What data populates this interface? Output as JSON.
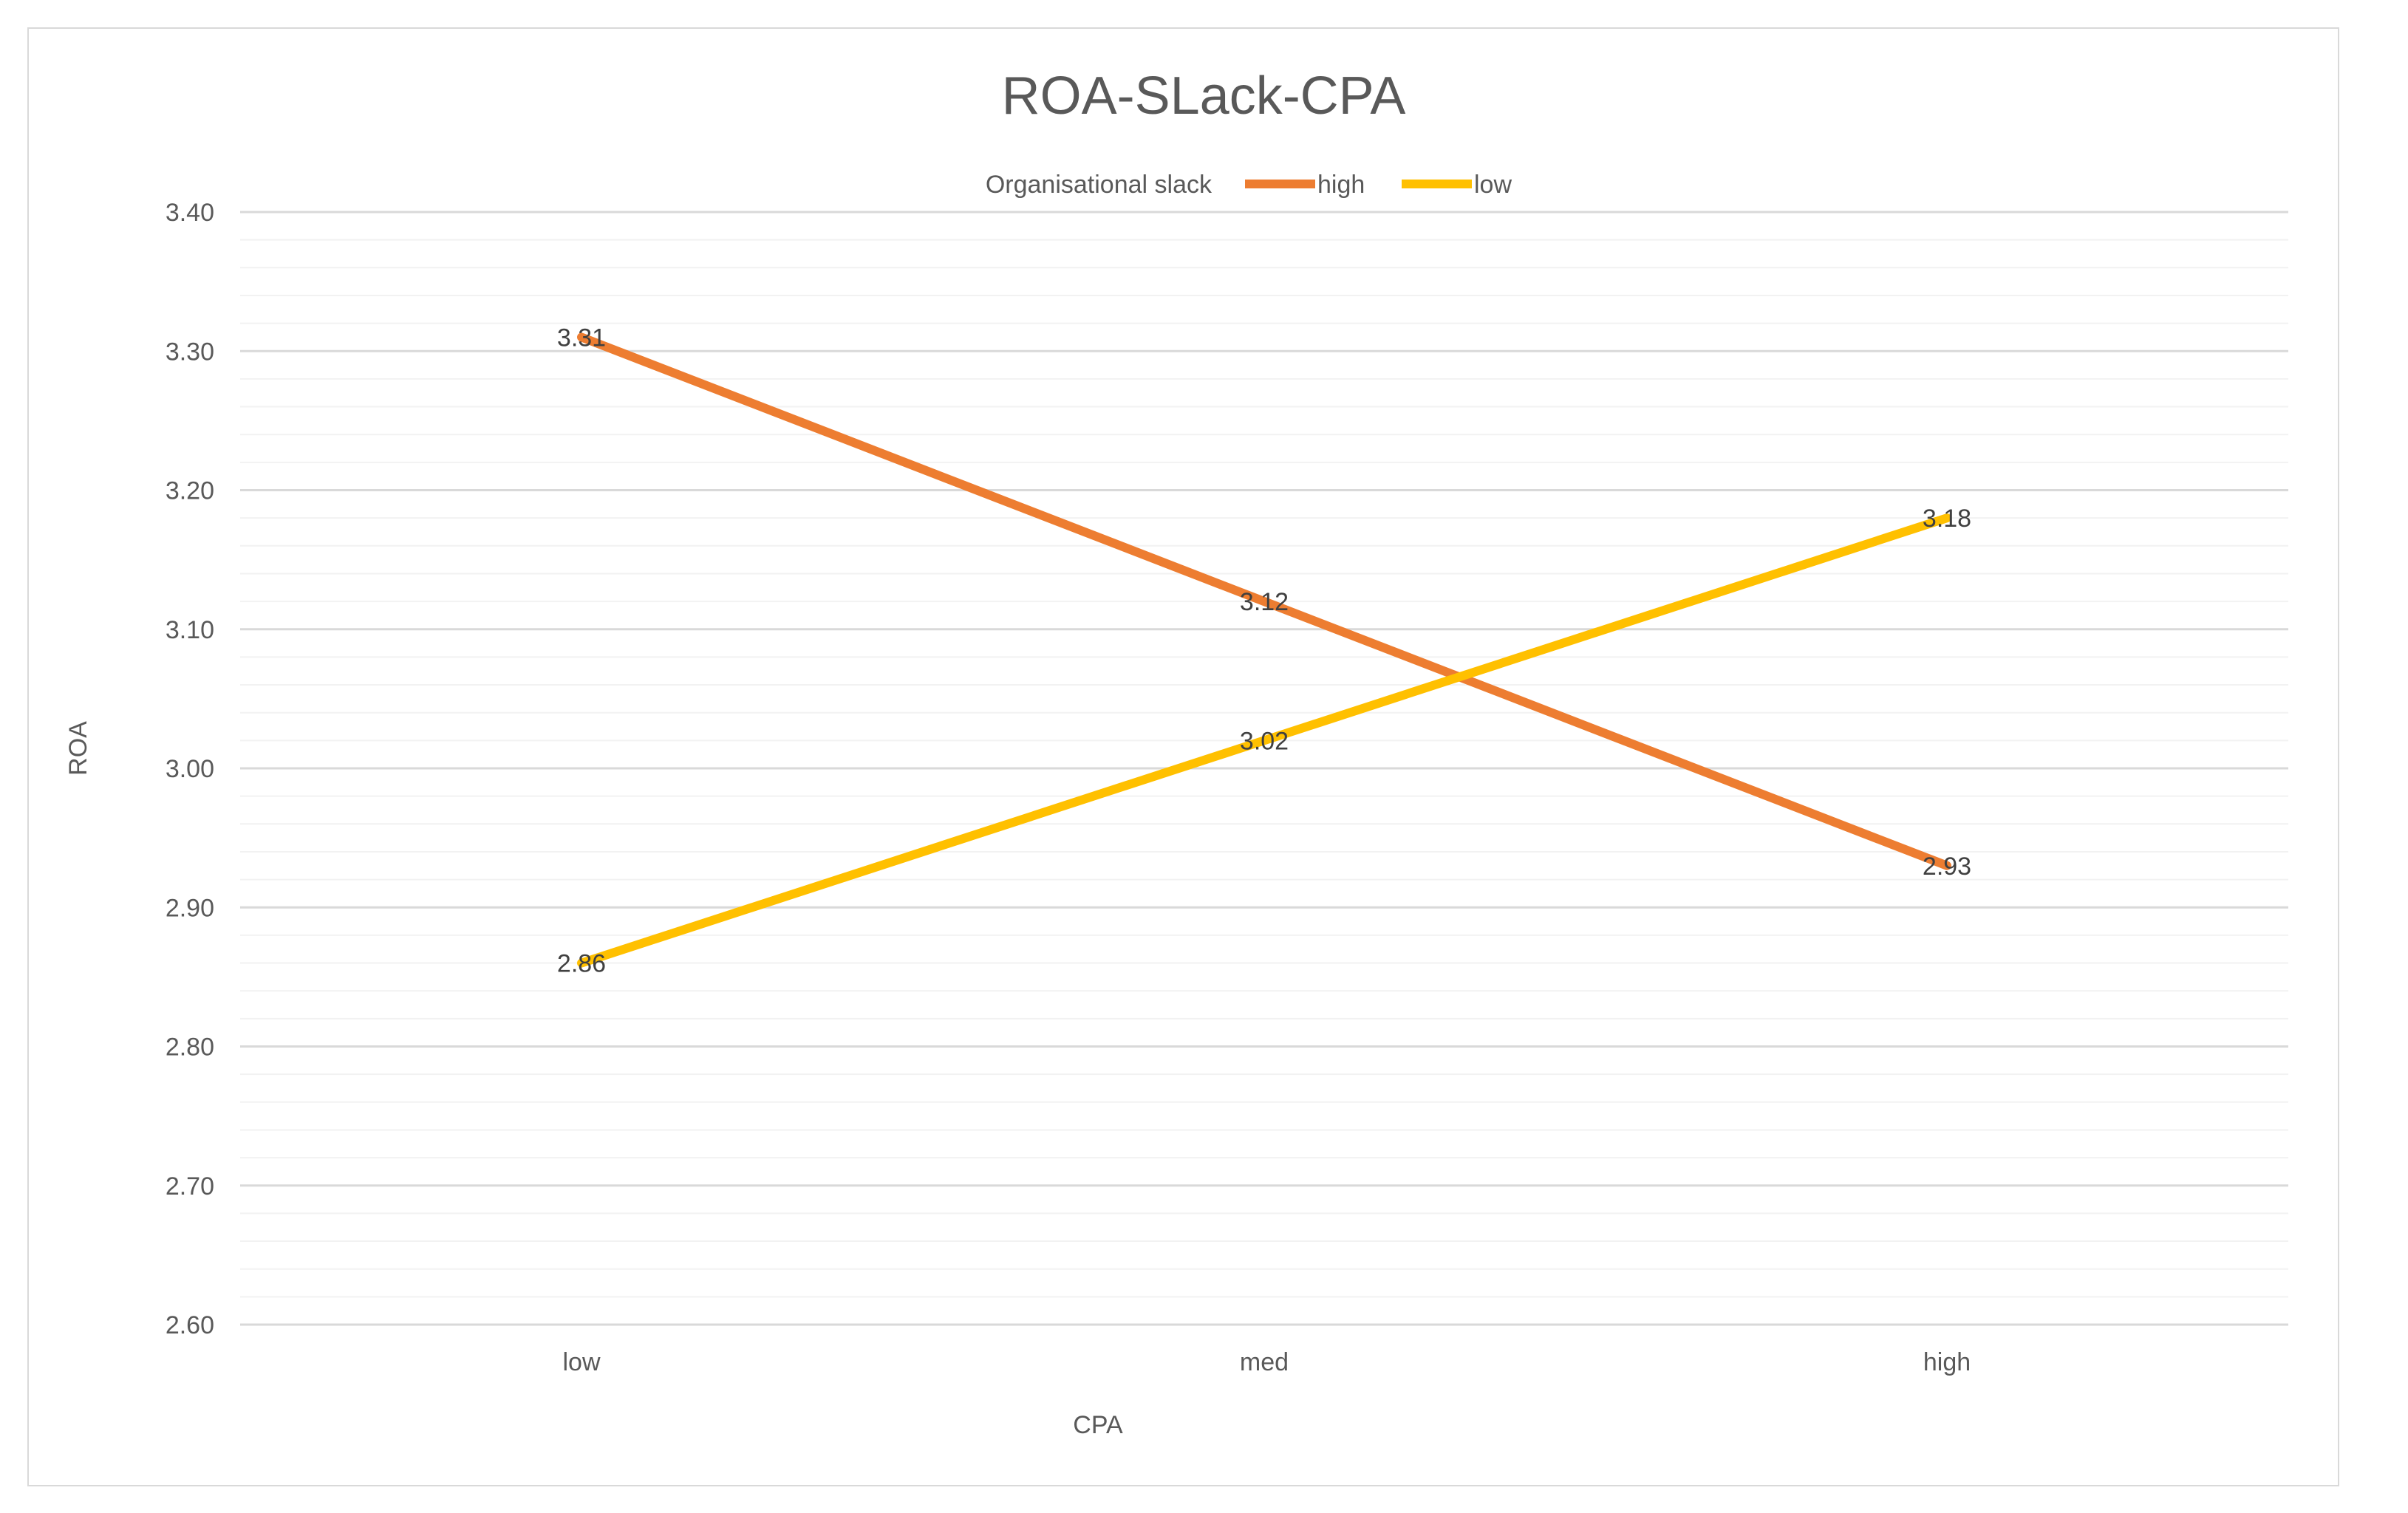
{
  "colors": {
    "series_high": "#ED7D31",
    "series_low": "#FFC000",
    "gridline_major": "#d9d9d9",
    "gridline_minor": "#f2f2f2",
    "text": "#595959"
  },
  "chart_data": {
    "type": "line",
    "title": "ROA-SLack-CPA",
    "xlabel": "CPA",
    "ylabel": "ROA",
    "categories": [
      "low",
      "med",
      "high"
    ],
    "ylim": [
      2.6,
      3.4
    ],
    "y_major_step": 0.1,
    "y_minor_step": 0.02,
    "y_tick_labels": [
      "2.60",
      "2.70",
      "2.80",
      "2.90",
      "3.00",
      "3.10",
      "3.20",
      "3.30",
      "3.40"
    ],
    "grid": true,
    "legend": {
      "title": "Organisational slack",
      "placement": "top"
    },
    "series": [
      {
        "name": "high",
        "color": "#ED7D31",
        "values": [
          3.31,
          3.12,
          2.93
        ],
        "labels": [
          "3.31",
          "3.12",
          "2.93"
        ]
      },
      {
        "name": "low",
        "color": "#FFC000",
        "values": [
          2.86,
          3.02,
          3.18
        ],
        "labels": [
          "2.86",
          "3.02",
          "3.18"
        ]
      }
    ]
  }
}
